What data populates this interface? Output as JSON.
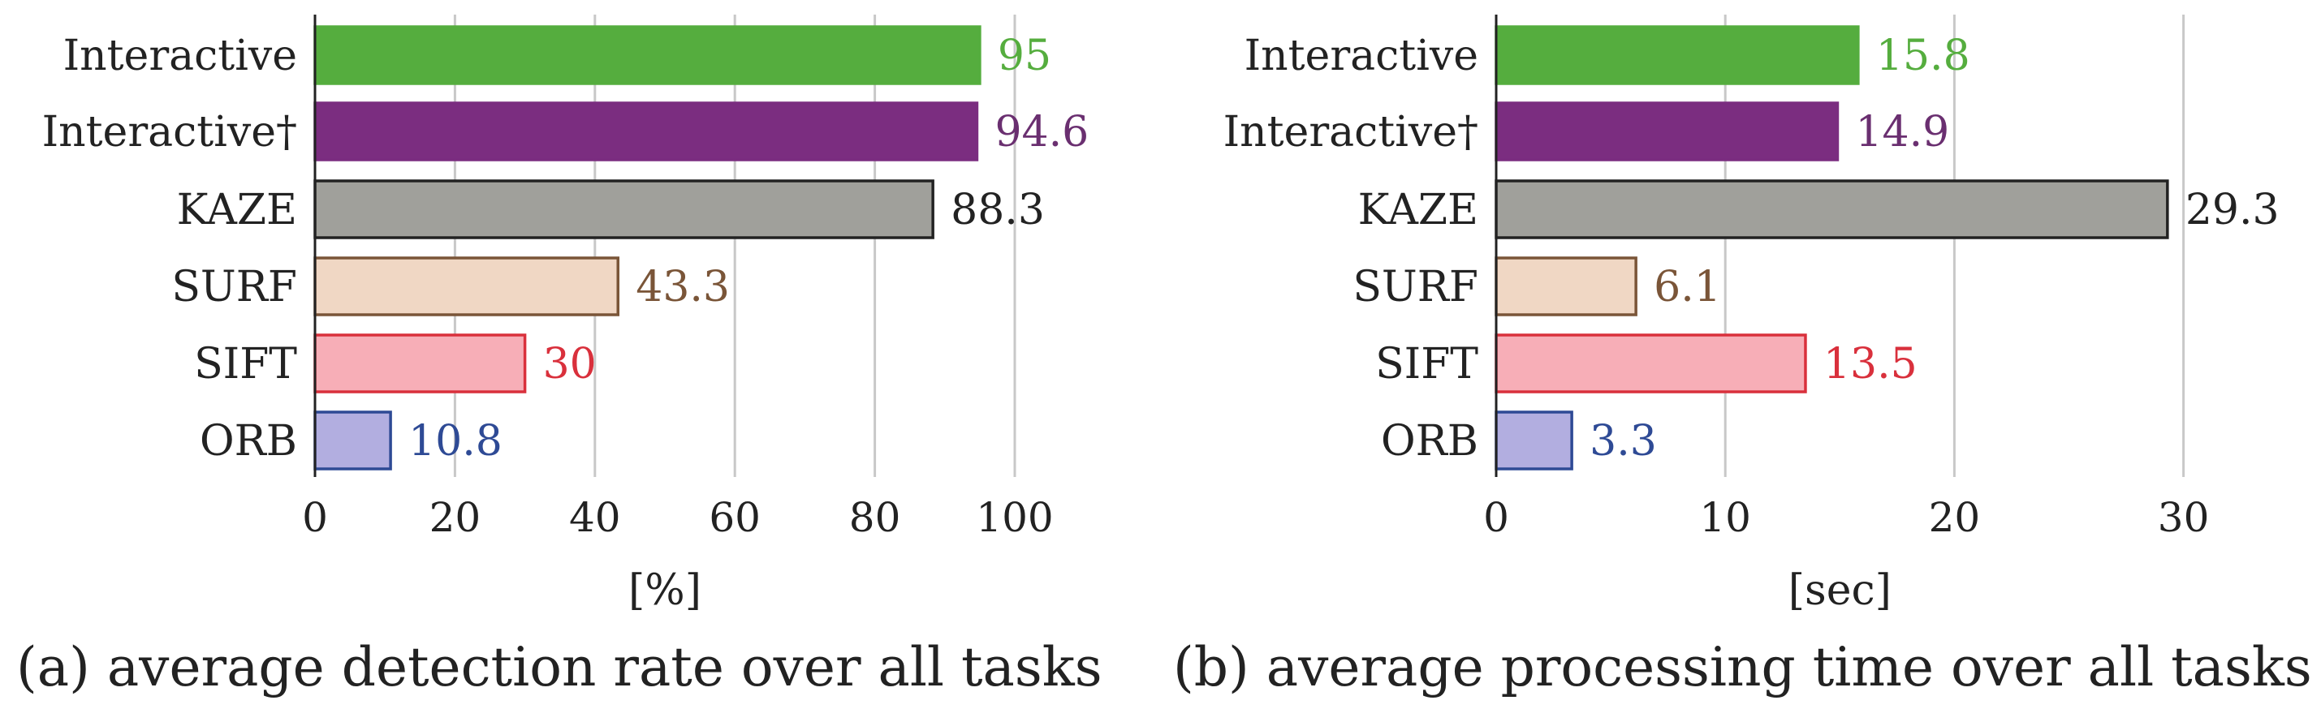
{
  "chart_data": [
    {
      "type": "bar",
      "orientation": "horizontal",
      "categories": [
        "Interactive",
        "Interactive†",
        "KAZE",
        "SURF",
        "SIFT",
        "ORB"
      ],
      "values": [
        95,
        94.6,
        88.3,
        43.3,
        30,
        10.8
      ],
      "value_labels": [
        "95",
        "94.6",
        "88.3",
        "43.3",
        "30",
        "10.8"
      ],
      "xlabel": "[%]",
      "xlim": [
        0,
        110
      ],
      "xticks": [
        0,
        20,
        40,
        60,
        80,
        100
      ],
      "grid": "vertical",
      "caption": "(a) average detection rate over all tasks"
    },
    {
      "type": "bar",
      "orientation": "horizontal",
      "categories": [
        "Interactive",
        "Interactive†",
        "KAZE",
        "SURF",
        "SIFT",
        "ORB"
      ],
      "values": [
        15.8,
        14.9,
        29.3,
        6.1,
        13.5,
        3.3
      ],
      "value_labels": [
        "15.8",
        "14.9",
        "29.3",
        "6.1",
        "13.5",
        "3.3"
      ],
      "xlabel": "[sec]",
      "xlim": [
        0,
        34
      ],
      "xticks": [
        0,
        10,
        20,
        30
      ],
      "grid": "vertical",
      "caption": "(b) average processing time over all tasks"
    }
  ],
  "colors": {
    "bar_fills": [
      "#55ad3e",
      "#7b2d80",
      "#a0a09b",
      "#f0d7c4",
      "#f7aeb7",
      "#b2aee0"
    ],
    "bar_strokes": [
      "#55ad3e",
      "#7b2d80",
      "#222222",
      "#7a5538",
      "#d9303c",
      "#2e4a95"
    ],
    "label_colors": [
      "#55ad3e",
      "#6a2f70",
      "#222222",
      "#7a5538",
      "#d9303c",
      "#2e4a95"
    ]
  }
}
